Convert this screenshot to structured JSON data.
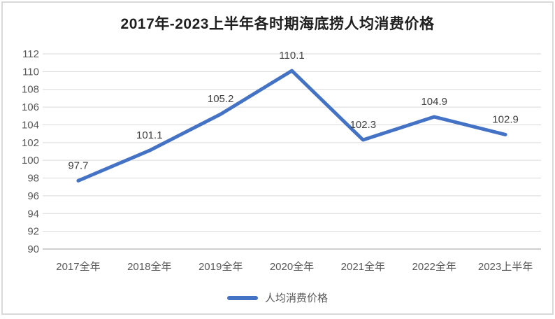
{
  "chart_data": {
    "type": "line",
    "title": "2017年-2023上半年各时期海底捞人均消费价格",
    "categories": [
      "2017全年",
      "2018全年",
      "2019全年",
      "2020全年",
      "2021全年",
      "2022全年",
      "2023上半年"
    ],
    "series": [
      {
        "name": "人均消费价格",
        "values": [
          97.7,
          101.1,
          105.2,
          110.1,
          102.3,
          104.9,
          102.9
        ]
      }
    ],
    "data_labels": [
      "97.7",
      "101.1",
      "105.2",
      "110.1",
      "102.3",
      "104.9",
      "102.9"
    ],
    "ytick_labels": [
      "90",
      "92",
      "94",
      "96",
      "98",
      "100",
      "102",
      "104",
      "106",
      "108",
      "110",
      "112"
    ],
    "ylim": [
      90,
      112
    ],
    "ytick_step": 2,
    "xlabel": "",
    "ylabel": "",
    "grid": "horizontal",
    "legend_position": "bottom",
    "colors": {
      "line": "#4472C4",
      "grid": "#D9D9D9",
      "axis_line": "#BFBFBF",
      "tick_text": "#595959",
      "data_label": "#404040",
      "title_text": "#1F1F1F",
      "border": "#D9D9D9"
    }
  }
}
